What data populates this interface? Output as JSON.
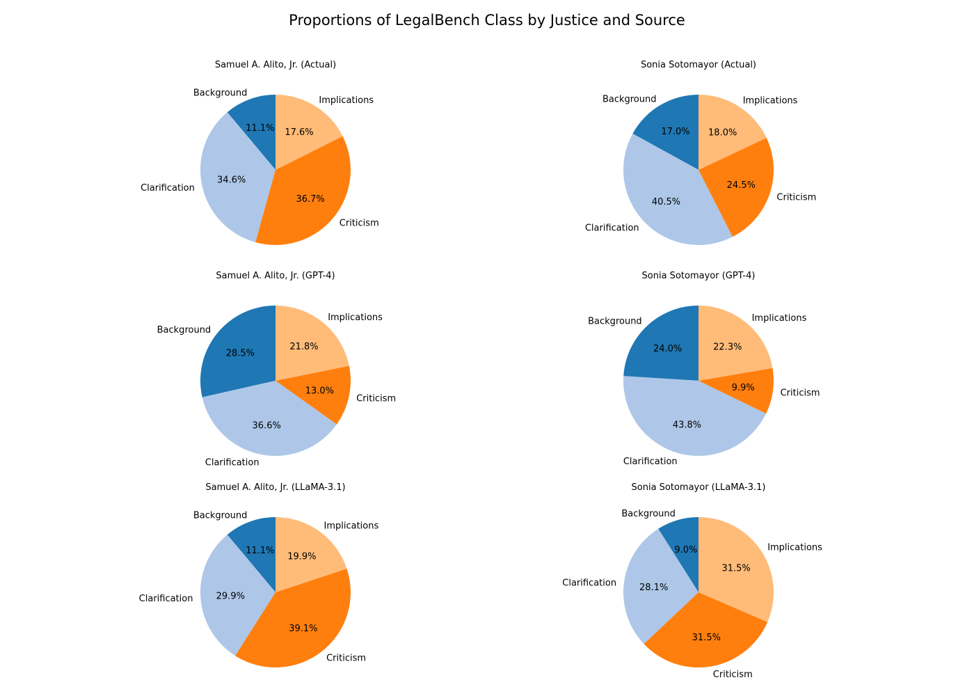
{
  "title": "Proportions of LegalBench Class by Justice and Source",
  "colors": {
    "Background": "#1f77b4",
    "Clarification": "#aec7e8",
    "Criticism": "#ff7f0e",
    "Implications": "#ffbb78"
  },
  "chart_data": [
    {
      "type": "pie",
      "title": "Samuel A. Alito, Jr. (Actual)",
      "labels": [
        "Background",
        "Clarification",
        "Criticism",
        "Implications"
      ],
      "values": [
        11.1,
        34.6,
        36.7,
        17.6
      ],
      "value_labels": [
        "11.1%",
        "34.6%",
        "36.7%",
        "17.6%"
      ]
    },
    {
      "type": "pie",
      "title": "Sonia Sotomayor (Actual)",
      "labels": [
        "Background",
        "Clarification",
        "Criticism",
        "Implications"
      ],
      "values": [
        17.0,
        40.5,
        24.5,
        18.0
      ],
      "value_labels": [
        "17.0%",
        "40.5%",
        "24.5%",
        "18.0%"
      ]
    },
    {
      "type": "pie",
      "title": "Samuel A. Alito, Jr. (GPT-4)",
      "labels": [
        "Background",
        "Clarification",
        "Criticism",
        "Implications"
      ],
      "values": [
        28.5,
        36.6,
        13.0,
        21.8
      ],
      "value_labels": [
        "28.5%",
        "36.6%",
        "13.0%",
        "21.8%"
      ]
    },
    {
      "type": "pie",
      "title": "Sonia Sotomayor (GPT-4)",
      "labels": [
        "Background",
        "Clarification",
        "Criticism",
        "Implications"
      ],
      "values": [
        24.0,
        43.8,
        9.9,
        22.3
      ],
      "value_labels": [
        "24.0%",
        "43.8%",
        "9.9%",
        "22.3%"
      ]
    },
    {
      "type": "pie",
      "title": "Samuel A. Alito, Jr. (LLaMA-3.1)",
      "labels": [
        "Background",
        "Clarification",
        "Criticism",
        "Implications"
      ],
      "values": [
        11.1,
        29.9,
        39.1,
        19.9
      ],
      "value_labels": [
        "11.1%",
        "29.9%",
        "39.1%",
        "19.9%"
      ]
    },
    {
      "type": "pie",
      "title": "Sonia Sotomayor (LLaMA-3.1)",
      "labels": [
        "Background",
        "Clarification",
        "Criticism",
        "Implications"
      ],
      "values": [
        9.0,
        28.1,
        31.5,
        31.5
      ],
      "value_labels": [
        "9.0%",
        "28.1%",
        "31.5%",
        "31.5%"
      ]
    }
  ]
}
